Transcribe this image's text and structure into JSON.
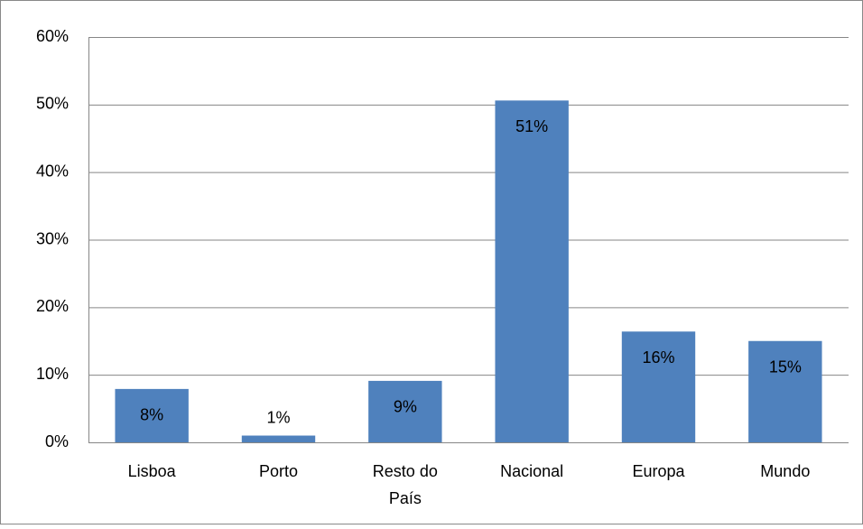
{
  "chart_data": {
    "type": "bar",
    "categories": [
      "Lisboa",
      "Porto",
      "Resto do País",
      "Nacional",
      "Europa",
      "Mundo"
    ],
    "values": [
      7.9,
      1.0,
      9.1,
      50.6,
      16.4,
      15.0
    ],
    "value_labels": [
      "8%",
      "1%",
      "9%",
      "51%",
      "16%",
      "15%"
    ],
    "color": "#4f81bd",
    "ylim": [
      0,
      60
    ],
    "yticks": [
      {
        "value": 0,
        "label": "0%"
      },
      {
        "value": 10,
        "label": "10%"
      },
      {
        "value": 20,
        "label": "20%"
      },
      {
        "value": 30,
        "label": "30%"
      },
      {
        "value": 40,
        "label": "40%"
      },
      {
        "value": 50,
        "label": "50%"
      },
      {
        "value": 60,
        "label": "60%"
      }
    ],
    "grid": true
  }
}
